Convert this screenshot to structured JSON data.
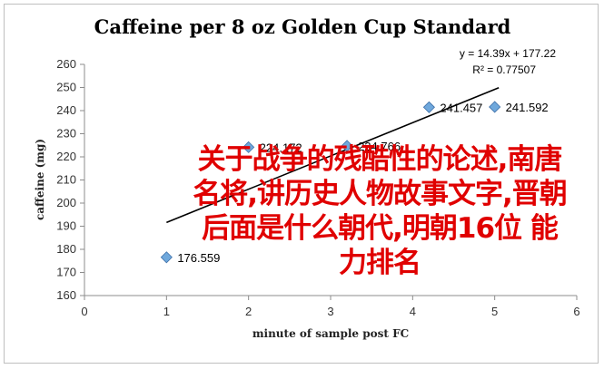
{
  "chart_data": {
    "type": "scatter",
    "title": "Caffeine per 8 oz Golden Cup Standard",
    "xlabel": "minute of sample post FC",
    "ylabel": "caffeine (mg)",
    "xlim": [
      0,
      6
    ],
    "ylim": [
      160,
      260
    ],
    "x_ticks": [
      "0",
      "1",
      "2",
      "3",
      "4",
      "5",
      "6"
    ],
    "y_ticks": [
      "160",
      "170",
      "180",
      "190",
      "200",
      "210",
      "220",
      "230",
      "240",
      "250",
      "260"
    ],
    "points": [
      {
        "x": 1,
        "y": 176.559,
        "label": "176.559"
      },
      {
        "x": 2,
        "y": 224.172,
        "label": "224.172"
      },
      {
        "x": 3.2,
        "y": 224.766,
        "label": "224.766"
      },
      {
        "x": 4.2,
        "y": 241.457,
        "label": "241.457"
      },
      {
        "x": 5,
        "y": 241.592,
        "label": "241.592"
      }
    ],
    "trendline": {
      "slope": 14.39,
      "intercept": 177.22,
      "x_start": 1,
      "x_end": 5
    },
    "equation": "y = 14.39x + 177.22",
    "r_squared": "R² = 0.77507",
    "grid": false,
    "marker_color": "#6fa8dc",
    "marker_edge": "#3d6fa8",
    "line_color": "#000000"
  },
  "overlay_text": "关于战争的残酷性的论述,南唐名将,讲历史人物故事文字,晋朝后面是什么朝代,明朝16位  能力排名",
  "overlay_color": "#e00000"
}
